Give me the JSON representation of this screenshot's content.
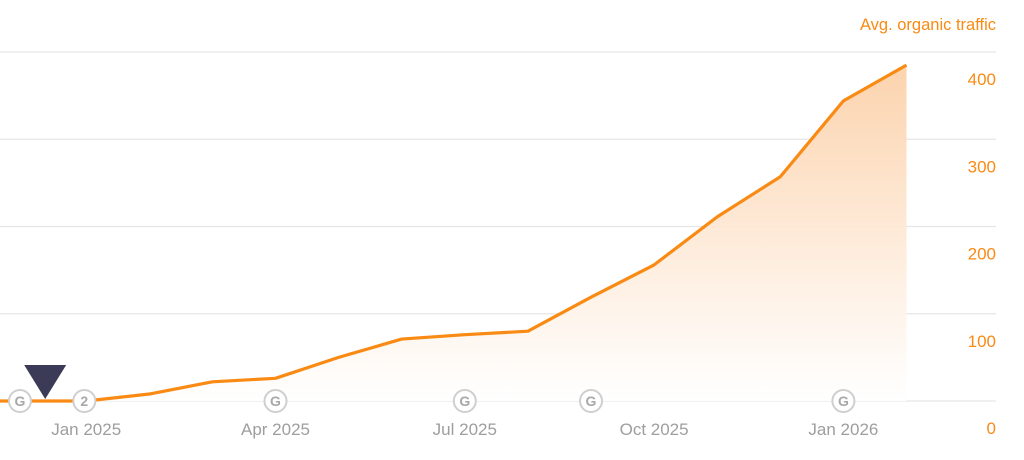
{
  "chart_data": {
    "type": "area",
    "title": "",
    "ylabel": "Avg. organic traffic",
    "ylim": [
      0,
      400
    ],
    "yticks": [
      "0",
      "100",
      "200",
      "300",
      "400"
    ],
    "xticks": [
      {
        "label": "Jan 2025",
        "month": 2
      },
      {
        "label": "Apr 2025",
        "month": 5
      },
      {
        "label": "Jul 2025",
        "month": 8
      },
      {
        "label": "Oct 2025",
        "month": 11
      },
      {
        "label": "Jan 2026",
        "month": 14
      }
    ],
    "grid": true,
    "color": "#f98a14",
    "series": [
      {
        "x": [
          "Oct 2024",
          "Nov 2024",
          "Dec 2024",
          "Jan 2025",
          "Feb 2025",
          "Mar 2025",
          "Apr 2025",
          "May 2025",
          "Jun 2025",
          "Jul 2025",
          "Aug 2025",
          "Sep 2025",
          "Oct 2025",
          "Nov 2025",
          "Dec 2025",
          "Jan 2026"
        ],
        "values": [
          0,
          0,
          0,
          8,
          22,
          26,
          50,
          71,
          76,
          80,
          119,
          156,
          211,
          257,
          344,
          385
        ]
      }
    ],
    "annotations": [
      {
        "type": "google-update",
        "label": "G",
        "month": 0.95
      },
      {
        "type": "marker-triangle",
        "month": 1.35
      },
      {
        "type": "count",
        "label": "2",
        "month": 1.97
      },
      {
        "type": "google-update",
        "label": "G",
        "month": 5
      },
      {
        "type": "google-update",
        "label": "G",
        "month": 8
      },
      {
        "type": "google-update",
        "label": "G",
        "month": 10
      },
      {
        "type": "google-update",
        "label": "G",
        "month": 14
      }
    ]
  }
}
